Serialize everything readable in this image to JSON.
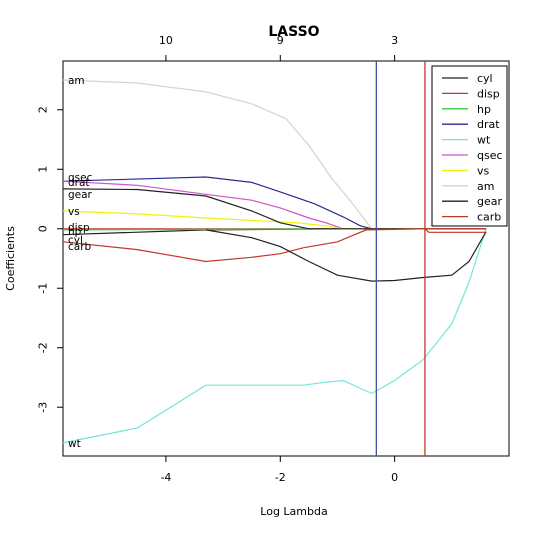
{
  "chart_data": {
    "type": "line",
    "title": "LASSO",
    "xlabel": "Log Lambda",
    "ylabel": "Coefficients",
    "xlim": [
      -5.8,
      2.0
    ],
    "ylim": [
      -3.82,
      2.82
    ],
    "x_ticks": [
      -4,
      -2,
      0
    ],
    "y_ticks": [
      -3,
      -2,
      -1,
      0,
      1,
      2
    ],
    "top_ticks": [
      {
        "x": -4.0,
        "label": "10"
      },
      {
        "x": -2.0,
        "label": "9"
      },
      {
        "x": 0.0,
        "label": "3"
      }
    ],
    "vlines": [
      {
        "x": -0.32,
        "color": "#3d52a1"
      },
      {
        "x": 0.53,
        "color": "#c0392b"
      }
    ],
    "series": [
      {
        "name": "cyl",
        "color": "#222222",
        "end_label": "cyl",
        "x": [
          -5.8,
          -3.3,
          -1.0,
          -0.4,
          0.53,
          1.6
        ],
        "y": [
          -0.1,
          -0.02,
          0.0,
          0.0,
          0.0,
          0.0
        ]
      },
      {
        "name": "disp",
        "color": "#c0392b",
        "end_label": "disp",
        "x": [
          -5.8,
          -3.3,
          -2.0,
          -1.0,
          -0.5,
          0.53,
          1.6
        ],
        "y": [
          0.0,
          0.0,
          0.0,
          0.0,
          0.0,
          0.0,
          0.0
        ]
      },
      {
        "name": "hp",
        "color": "#2ecc40",
        "end_label": "hp",
        "x": [
          -5.8,
          -3.3,
          -1.0,
          -0.4,
          0.53,
          1.6
        ],
        "y": [
          -0.02,
          -0.01,
          0.0,
          0.0,
          0.0,
          0.0
        ]
      },
      {
        "name": "drat",
        "color": "#2c2c8c",
        "end_label": "drat",
        "x": [
          -5.8,
          -3.3,
          -2.5,
          -2.0,
          -1.4,
          -0.9,
          -0.6,
          -0.4,
          0.53,
          1.6
        ],
        "y": [
          0.8,
          0.87,
          0.78,
          0.62,
          0.42,
          0.2,
          0.05,
          0.0,
          0.0,
          0.0
        ]
      },
      {
        "name": "wt",
        "color": "#6ee8dc",
        "end_label": "wt",
        "x": [
          -5.8,
          -4.5,
          -3.3,
          -2.5,
          -1.6,
          -1.2,
          -0.9,
          -0.4,
          0.0,
          0.5,
          1.0,
          1.3,
          1.6
        ],
        "y": [
          -3.6,
          -3.35,
          -2.63,
          -2.63,
          -2.63,
          -2.58,
          -2.55,
          -2.77,
          -2.55,
          -2.2,
          -1.6,
          -0.9,
          0.0
        ]
      },
      {
        "name": "qsec",
        "color": "#cc55cc",
        "end_label": "qsec",
        "x": [
          -5.8,
          -4.5,
          -3.3,
          -2.5,
          -2.0,
          -1.5,
          -1.2,
          -0.9,
          -0.6,
          0.53,
          1.6
        ],
        "y": [
          0.8,
          0.73,
          0.58,
          0.48,
          0.35,
          0.18,
          0.1,
          0.0,
          0.0,
          0.0,
          0.0
        ]
      },
      {
        "name": "vs",
        "color": "#f2f20d",
        "end_label": "vs",
        "x": [
          -5.8,
          -4.5,
          -3.3,
          -2.5,
          -1.7,
          -1.2,
          -0.9,
          0.53,
          1.6
        ],
        "y": [
          0.3,
          0.25,
          0.18,
          0.14,
          0.1,
          0.05,
          0.0,
          0.0,
          0.0
        ]
      },
      {
        "name": "am",
        "color": "#d3d3d3",
        "end_label": "am",
        "x": [
          -5.8,
          -4.5,
          -3.3,
          -2.5,
          -1.9,
          -1.5,
          -1.1,
          -0.8,
          -0.4,
          0.53,
          1.6
        ],
        "y": [
          2.5,
          2.45,
          2.3,
          2.1,
          1.85,
          1.4,
          0.85,
          0.5,
          0.0,
          0.0,
          0.0
        ]
      },
      {
        "name": "gear",
        "color": "#222222",
        "end_label": "gear",
        "x": [
          -5.8,
          -4.5,
          -3.3,
          -2.5,
          -2.0,
          -1.5,
          -1.1,
          -0.4,
          0.0,
          0.53,
          1.0,
          1.3,
          1.6
        ],
        "y": [
          0.67,
          0.66,
          0.55,
          0.3,
          0.1,
          0.0,
          0.0,
          0.0,
          0.0,
          0.0,
          0.0,
          0.0,
          0.0
        ]
      },
      {
        "name": "carb",
        "color": "#c0392b",
        "end_label": "carb",
        "x": [
          -5.8,
          -4.5,
          -3.3,
          -2.5,
          -2.0,
          -1.6,
          -1.0,
          -0.5,
          0.53,
          1.6
        ],
        "y": [
          -0.22,
          -0.35,
          -0.55,
          -0.48,
          -0.42,
          -0.32,
          -0.22,
          -0.02,
          0.0,
          0.0
        ]
      }
    ],
    "extra_lines": [
      {
        "color": "#222222",
        "x": [
          -3.3,
          -2.5,
          -2.0,
          -1.5,
          -1.0,
          -0.4,
          0.0,
          0.5,
          1.0,
          1.3,
          1.6
        ],
        "y": [
          -0.02,
          -0.15,
          -0.3,
          -0.55,
          -0.78,
          -0.88,
          -0.87,
          -0.82,
          -0.78,
          -0.55,
          -0.05
        ]
      },
      {
        "color": "#c0392b",
        "x": [
          0.53,
          0.53,
          0.6,
          1.6
        ],
        "y": [
          0.0,
          0.0,
          -0.06,
          -0.06
        ]
      }
    ],
    "legend_position": "top-right",
    "grid": false
  }
}
